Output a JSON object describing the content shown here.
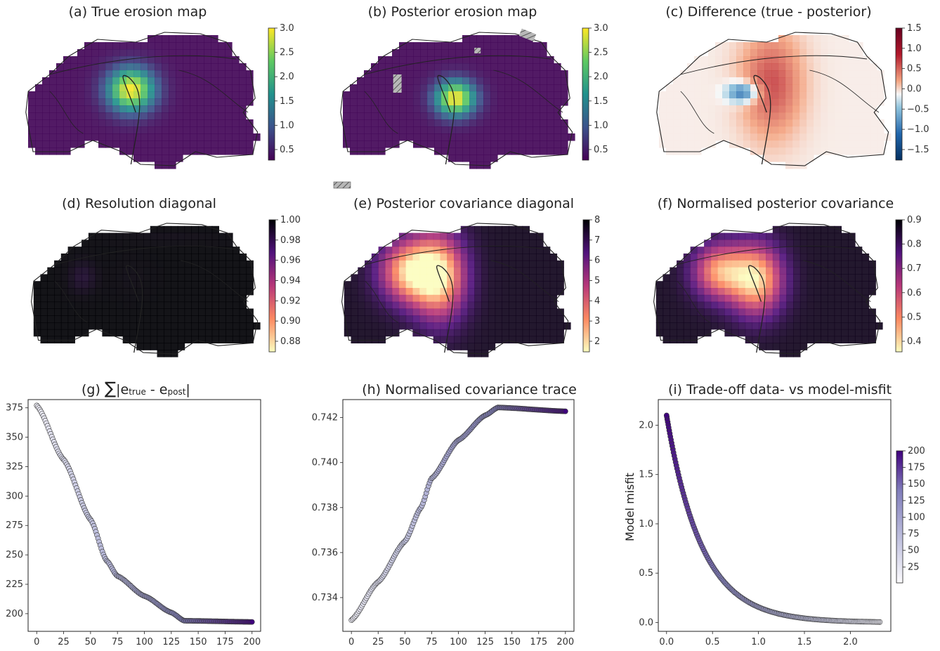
{
  "panels": {
    "a": {
      "title": "(a) True erosion map",
      "cmap": "viridis",
      "cbar_ticks": [
        "0.5",
        "1.0",
        "1.5",
        "2.0",
        "2.5",
        "3.0"
      ]
    },
    "b": {
      "title": "(b) Posterior erosion map",
      "cmap": "viridis",
      "cbar_ticks": [
        "0.5",
        "1.0",
        "1.5",
        "2.0",
        "2.5",
        "3.0"
      ]
    },
    "c": {
      "title": "(c) Difference (true - posterior)",
      "cmap": "RdBu_r",
      "cbar_ticks": [
        "−1.5",
        "−1.0",
        "−0.5",
        "0.0",
        "0.5",
        "1.0",
        "1.5"
      ]
    },
    "d": {
      "title": "(d) Resolution diagonal",
      "cmap": "magma_r",
      "cbar_ticks": [
        "0.88",
        "0.90",
        "0.92",
        "0.94",
        "0.96",
        "0.98",
        "1.00"
      ]
    },
    "e": {
      "title": "(e) Posterior covariance diagonal",
      "cmap": "magma_r",
      "cbar_ticks": [
        "2",
        "3",
        "4",
        "5",
        "6",
        "7",
        "8"
      ]
    },
    "f": {
      "title": "(f) Normalised posterior covariance",
      "cmap": "magma_r",
      "cbar_ticks": [
        "0.4",
        "0.5",
        "0.6",
        "0.7",
        "0.8",
        "0.9"
      ]
    }
  },
  "chart_data": [
    {
      "type": "scatter",
      "title_prefix": "(g) ",
      "title_sum": "∑",
      "title_e1": "e",
      "title_sub1": "true",
      "title_mid": " - ",
      "title_e2": "e",
      "title_sub2": "post",
      "xlabel": "",
      "ylabel": "",
      "xlim": [
        -8,
        208
      ],
      "ylim": [
        185,
        382
      ],
      "xticks": [
        0,
        25,
        50,
        75,
        100,
        125,
        150,
        175,
        200
      ],
      "yticks": [
        200,
        225,
        250,
        275,
        300,
        325,
        350,
        375
      ],
      "x_range": [
        0,
        200
      ],
      "n_points": 201,
      "y_keypoints": [
        [
          0,
          377
        ],
        [
          25,
          331
        ],
        [
          50,
          280
        ],
        [
          65,
          245
        ],
        [
          75,
          232
        ],
        [
          100,
          215
        ],
        [
          125,
          201
        ],
        [
          137,
          194
        ],
        [
          200,
          193
        ]
      ],
      "color_by": "iteration",
      "colormap": "Purples"
    },
    {
      "type": "scatter",
      "title": "(h) Normalised covariance trace",
      "xlabel": "",
      "ylabel": "",
      "xlim": [
        -8,
        208
      ],
      "ylim": [
        0.7325,
        0.7428
      ],
      "xticks": [
        0,
        25,
        50,
        75,
        100,
        125,
        150,
        175,
        200
      ],
      "yticks": [
        0.734,
        0.736,
        0.738,
        0.74,
        0.742
      ],
      "ytick_labels": [
        "0.734",
        "0.736",
        "0.738",
        "0.740",
        "0.742"
      ],
      "x_range": [
        0,
        200
      ],
      "n_points": 201,
      "y_keypoints": [
        [
          0,
          0.733
        ],
        [
          25,
          0.7347
        ],
        [
          50,
          0.7365
        ],
        [
          65,
          0.738
        ],
        [
          75,
          0.7393
        ],
        [
          100,
          0.741
        ],
        [
          125,
          0.7421
        ],
        [
          137,
          0.74245
        ],
        [
          200,
          0.74228
        ]
      ],
      "color_by": "iteration",
      "colormap": "Purples"
    },
    {
      "type": "scatter",
      "title": "(i) Trade-off data- vs model-misfit",
      "xlabel": "",
      "ylabel": "Model misfit",
      "xlim": [
        -0.09,
        2.44
      ],
      "ylim": [
        -0.09,
        2.26
      ],
      "xticks": [
        0,
        0.5,
        1,
        1.5,
        2
      ],
      "xtick_labels": [
        "0.0",
        "0.5",
        "1.0",
        "1.5",
        "2.0"
      ],
      "yticks": [
        0,
        0.5,
        1,
        1.5,
        2
      ],
      "ytick_labels": [
        "0.0",
        "0.5",
        "1.0",
        "1.5",
        "2.0"
      ],
      "n_points": 201,
      "curve_note": "Pareto curve from (2.32, 0.0) at iteration 1 to (0.0, 2.1) at iteration 200",
      "colorbar": {
        "label": "",
        "ticks": [
          25,
          50,
          75,
          100,
          125,
          150,
          175,
          200
        ],
        "range": [
          1,
          200
        ]
      },
      "color_by": "iteration",
      "colormap": "Purples"
    }
  ]
}
